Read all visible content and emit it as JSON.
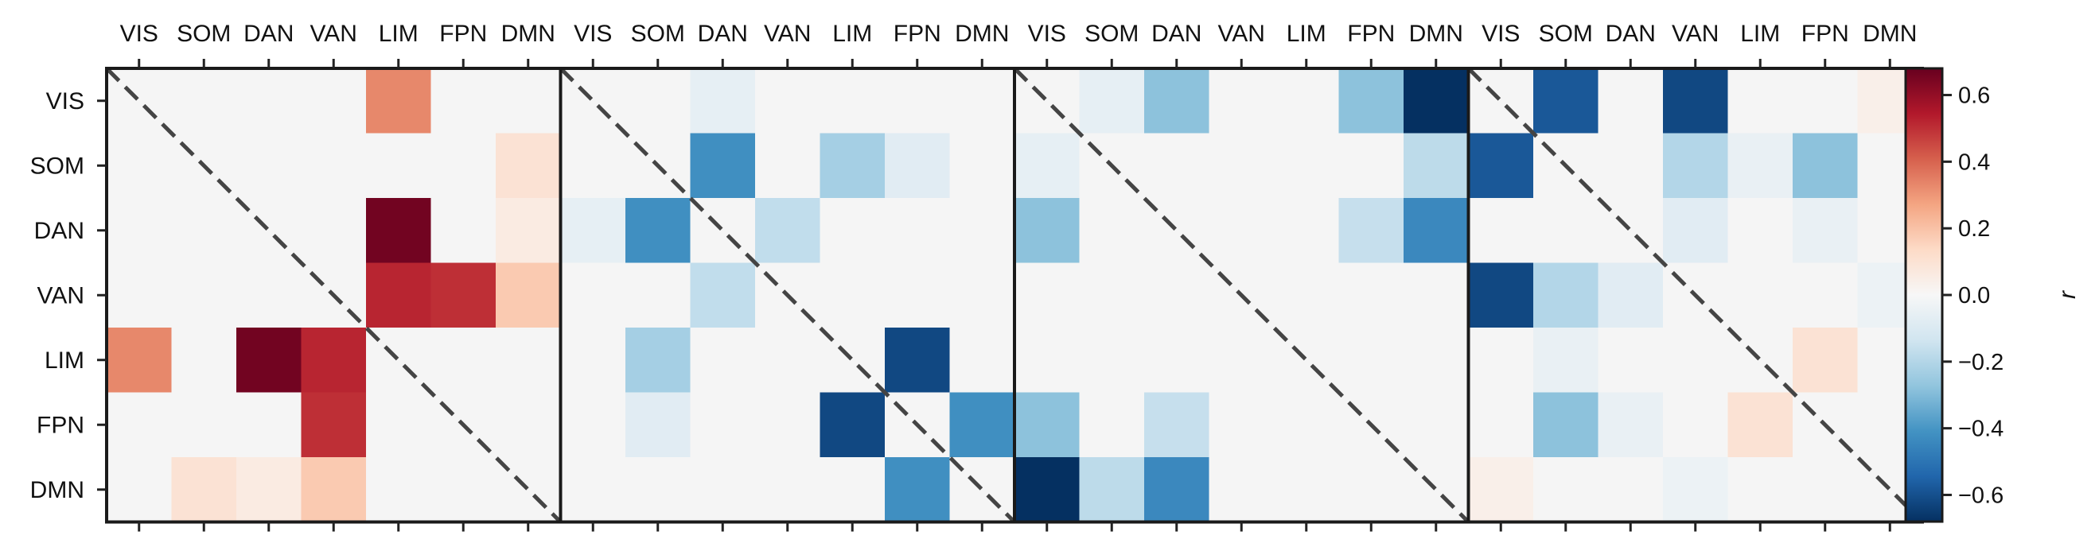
{
  "chart_data": [
    {
      "type": "heatmap",
      "panel": 1,
      "x_categories": [
        "VIS",
        "SOM",
        "DAN",
        "VAN",
        "LIM",
        "FPN",
        "DMN"
      ],
      "y_categories": [
        "VIS",
        "SOM",
        "DAN",
        "VAN",
        "LIM",
        "FPN",
        "DMN"
      ],
      "values": [
        [
          0,
          0,
          0,
          0,
          0.33,
          0,
          0
        ],
        [
          0,
          0,
          0,
          0,
          0,
          0,
          0.1
        ],
        [
          0,
          0,
          0,
          0,
          0.66,
          0,
          0.06
        ],
        [
          0,
          0,
          0,
          0,
          0.52,
          0.5,
          0.18
        ],
        [
          0.33,
          0,
          0.66,
          0.52,
          0,
          0,
          0
        ],
        [
          0,
          0,
          0,
          0.5,
          0,
          0,
          0
        ],
        [
          0,
          0.1,
          0.06,
          0.18,
          0,
          0,
          0
        ]
      ]
    },
    {
      "type": "heatmap",
      "panel": 2,
      "x_categories": [
        "VIS",
        "SOM",
        "DAN",
        "VAN",
        "LIM",
        "FPN",
        "DMN"
      ],
      "y_categories": [
        "VIS",
        "SOM",
        "DAN",
        "VAN",
        "LIM",
        "FPN",
        "DMN"
      ],
      "values": [
        [
          0,
          0,
          -0.06,
          0,
          0,
          0,
          0
        ],
        [
          0,
          0,
          -0.42,
          0,
          -0.23,
          -0.08,
          0
        ],
        [
          -0.06,
          -0.42,
          0,
          -0.17,
          0,
          0,
          0
        ],
        [
          0,
          0,
          -0.17,
          0,
          0,
          0,
          0
        ],
        [
          0,
          -0.23,
          0,
          0,
          0,
          -0.62,
          0
        ],
        [
          0,
          -0.08,
          0,
          0,
          -0.62,
          0,
          -0.42
        ],
        [
          0,
          0,
          0,
          0,
          0,
          -0.42,
          0
        ]
      ]
    },
    {
      "type": "heatmap",
      "panel": 3,
      "x_categories": [
        "VIS",
        "SOM",
        "DAN",
        "VAN",
        "LIM",
        "FPN",
        "DMN"
      ],
      "y_categories": [
        "VIS",
        "SOM",
        "DAN",
        "VAN",
        "LIM",
        "FPN",
        "DMN"
      ],
      "values": [
        [
          0,
          -0.06,
          -0.28,
          0,
          0,
          -0.28,
          -0.68
        ],
        [
          -0.06,
          0,
          0,
          0,
          0,
          0,
          -0.18
        ],
        [
          -0.28,
          0,
          0,
          0,
          0,
          -0.16,
          -0.44
        ],
        [
          0,
          0,
          0,
          0,
          0,
          0,
          0
        ],
        [
          0,
          0,
          0,
          0,
          0,
          0,
          0
        ],
        [
          -0.28,
          0,
          -0.16,
          0,
          0,
          0,
          0
        ],
        [
          -0.68,
          -0.18,
          -0.44,
          0,
          0,
          0,
          0
        ]
      ]
    },
    {
      "type": "heatmap",
      "panel": 4,
      "x_categories": [
        "VIS",
        "SOM",
        "DAN",
        "VAN",
        "LIM",
        "FPN",
        "DMN"
      ],
      "y_categories": [
        "VIS",
        "SOM",
        "DAN",
        "VAN",
        "LIM",
        "FPN",
        "DMN"
      ],
      "values": [
        [
          0,
          -0.58,
          0,
          -0.62,
          0,
          0,
          0.04
        ],
        [
          -0.58,
          0,
          0,
          -0.2,
          -0.05,
          -0.28,
          0
        ],
        [
          0,
          0,
          0,
          -0.08,
          0,
          -0.05,
          0
        ],
        [
          -0.62,
          -0.2,
          -0.08,
          0,
          0,
          0,
          -0.04
        ],
        [
          0,
          -0.05,
          0,
          0,
          0,
          0.1,
          0
        ],
        [
          0,
          -0.28,
          -0.05,
          0,
          0.1,
          0,
          0
        ],
        [
          0.04,
          0,
          0,
          -0.04,
          0,
          0,
          0
        ]
      ]
    }
  ],
  "colorbar": {
    "label": "r",
    "vmin": -0.68,
    "vmax": 0.68,
    "colormap": "RdBu_r",
    "ticks": [
      {
        "value": 0.6,
        "label": "0.6"
      },
      {
        "value": 0.4,
        "label": "0.4"
      },
      {
        "value": 0.2,
        "label": "0.2"
      },
      {
        "value": 0.0,
        "label": "0.0"
      },
      {
        "value": -0.2,
        "label": "−0.2"
      },
      {
        "value": -0.4,
        "label": "−0.4"
      },
      {
        "value": -0.6,
        "label": "−0.6"
      }
    ]
  },
  "style": {
    "zero_color": "#f5f5f5",
    "diagonal_color": "#444444",
    "colormap_stops": [
      "#053061",
      "#2166ac",
      "#4393c3",
      "#92c5de",
      "#d1e5f0",
      "#f7f7f7",
      "#fddbc7",
      "#f4a582",
      "#d6604d",
      "#b2182b",
      "#67001f"
    ]
  }
}
